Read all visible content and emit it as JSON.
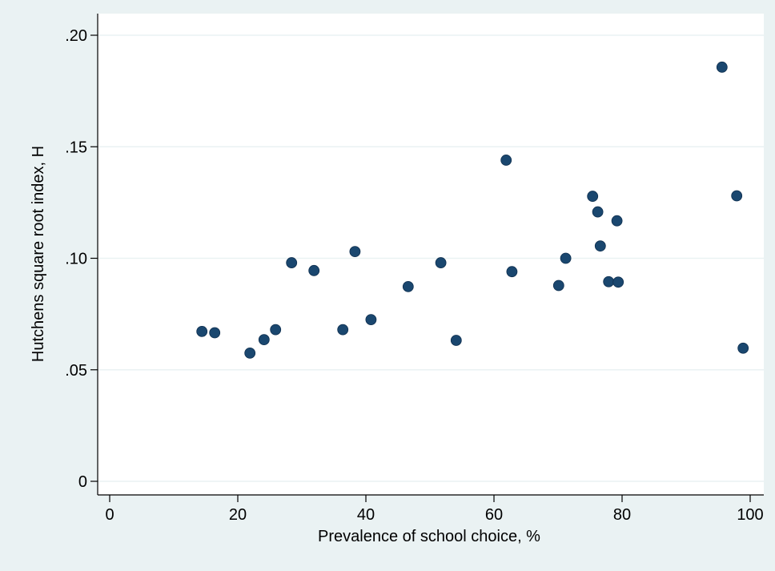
{
  "chart_data": {
    "type": "scatter",
    "xlabel": "Prevalence of school choice, %",
    "ylabel": "Hutchens square root index, H",
    "xlim": [
      0,
      100
    ],
    "ylim": [
      0,
      0.2
    ],
    "x_ticks": [
      0,
      20,
      40,
      60,
      80,
      100
    ],
    "x_tick_labels": [
      "0",
      "20",
      "40",
      "60",
      "80",
      "100"
    ],
    "y_ticks": [
      0,
      0.05,
      0.1,
      0.15,
      0.2
    ],
    "y_tick_labels": [
      "0",
      ".05",
      ".10",
      ".15",
      ".20"
    ],
    "grid": true,
    "marker_color": "#1a476f",
    "plot_background": "#ffffff",
    "outer_background": "#eaf2f3",
    "points": [
      {
        "x": 14.4,
        "y": 0.0672
      },
      {
        "x": 16.4,
        "y": 0.0666
      },
      {
        "x": 21.9,
        "y": 0.0575
      },
      {
        "x": 24.1,
        "y": 0.0635
      },
      {
        "x": 25.9,
        "y": 0.068
      },
      {
        "x": 28.4,
        "y": 0.098
      },
      {
        "x": 31.9,
        "y": 0.0945
      },
      {
        "x": 36.4,
        "y": 0.068
      },
      {
        "x": 38.3,
        "y": 0.103
      },
      {
        "x": 40.8,
        "y": 0.0725
      },
      {
        "x": 46.6,
        "y": 0.0873
      },
      {
        "x": 51.7,
        "y": 0.098
      },
      {
        "x": 54.1,
        "y": 0.0632
      },
      {
        "x": 61.9,
        "y": 0.144
      },
      {
        "x": 62.8,
        "y": 0.094
      },
      {
        "x": 70.1,
        "y": 0.0878
      },
      {
        "x": 71.2,
        "y": 0.1
      },
      {
        "x": 75.4,
        "y": 0.1278
      },
      {
        "x": 76.2,
        "y": 0.1208
      },
      {
        "x": 76.6,
        "y": 0.1055
      },
      {
        "x": 77.9,
        "y": 0.0895
      },
      {
        "x": 79.2,
        "y": 0.1168
      },
      {
        "x": 79.4,
        "y": 0.0893
      },
      {
        "x": 95.6,
        "y": 0.1857
      },
      {
        "x": 97.9,
        "y": 0.128
      },
      {
        "x": 98.9,
        "y": 0.0597
      }
    ]
  }
}
